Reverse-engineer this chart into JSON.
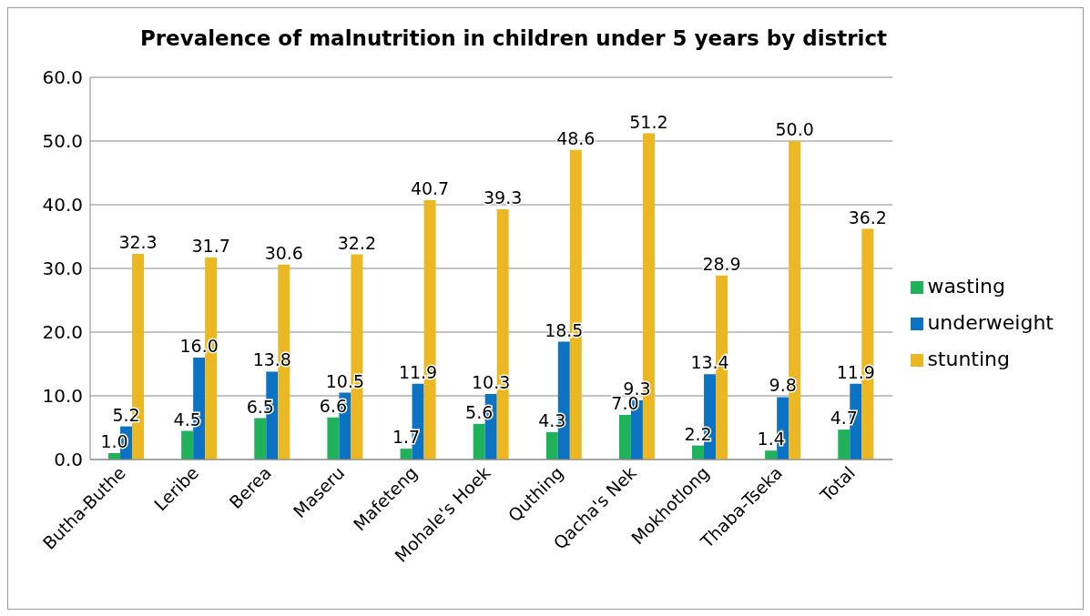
{
  "chart_data": {
    "type": "bar",
    "title": "Prevalence of malnutrition in children under 5 years by district",
    "categories": [
      "Butha-Buthe",
      "Leribe",
      "Berea",
      "Maseru",
      "Mafeteng",
      "Mohale's Hoek",
      "Quthing",
      "Qacha's Nek",
      "Mokhotlong",
      "Thaba-Tseka",
      "Total"
    ],
    "series": [
      {
        "name": "wasting",
        "color": "#1fb25a",
        "values": [
          1.0,
          4.5,
          6.5,
          6.6,
          1.7,
          5.6,
          4.3,
          7.0,
          2.2,
          1.4,
          4.7
        ],
        "value_labels": [
          "1.0",
          "4.5",
          "6.5",
          "6.6",
          "1.7",
          "5.6",
          "4.3",
          "7.0",
          "2.2",
          "1.4",
          "4.7"
        ]
      },
      {
        "name": "underweight",
        "color": "#0b72c4",
        "values": [
          5.2,
          16.0,
          13.8,
          10.5,
          11.9,
          10.3,
          18.5,
          9.3,
          13.4,
          9.8,
          11.9
        ],
        "value_labels": [
          "5.2",
          "16.0",
          "13.8",
          "10.5",
          "11.9",
          "10.3",
          "18.5",
          "9.3",
          "13.4",
          "9.8",
          "11.9"
        ]
      },
      {
        "name": "stunting",
        "color": "#ebb823",
        "values": [
          32.3,
          31.7,
          30.6,
          32.2,
          40.7,
          39.3,
          48.6,
          51.2,
          28.9,
          50.0,
          36.2
        ],
        "value_labels": [
          "32.3",
          "31.7",
          "30.6",
          "32.2",
          "40.7",
          "39.3",
          "48.6",
          "51.2",
          "28.9",
          "50.0",
          "36.2"
        ]
      }
    ],
    "ylim": [
      0,
      60
    ],
    "yticks": [
      {
        "value": 0,
        "label": "0.0"
      },
      {
        "value": 10,
        "label": "10.0"
      },
      {
        "value": 20,
        "label": "20.0"
      },
      {
        "value": 30,
        "label": "30.0"
      },
      {
        "value": 40,
        "label": "40.0"
      },
      {
        "value": 50,
        "label": "50.0"
      },
      {
        "value": 60,
        "label": "60.0"
      }
    ],
    "grid": "y",
    "legend": "right"
  }
}
